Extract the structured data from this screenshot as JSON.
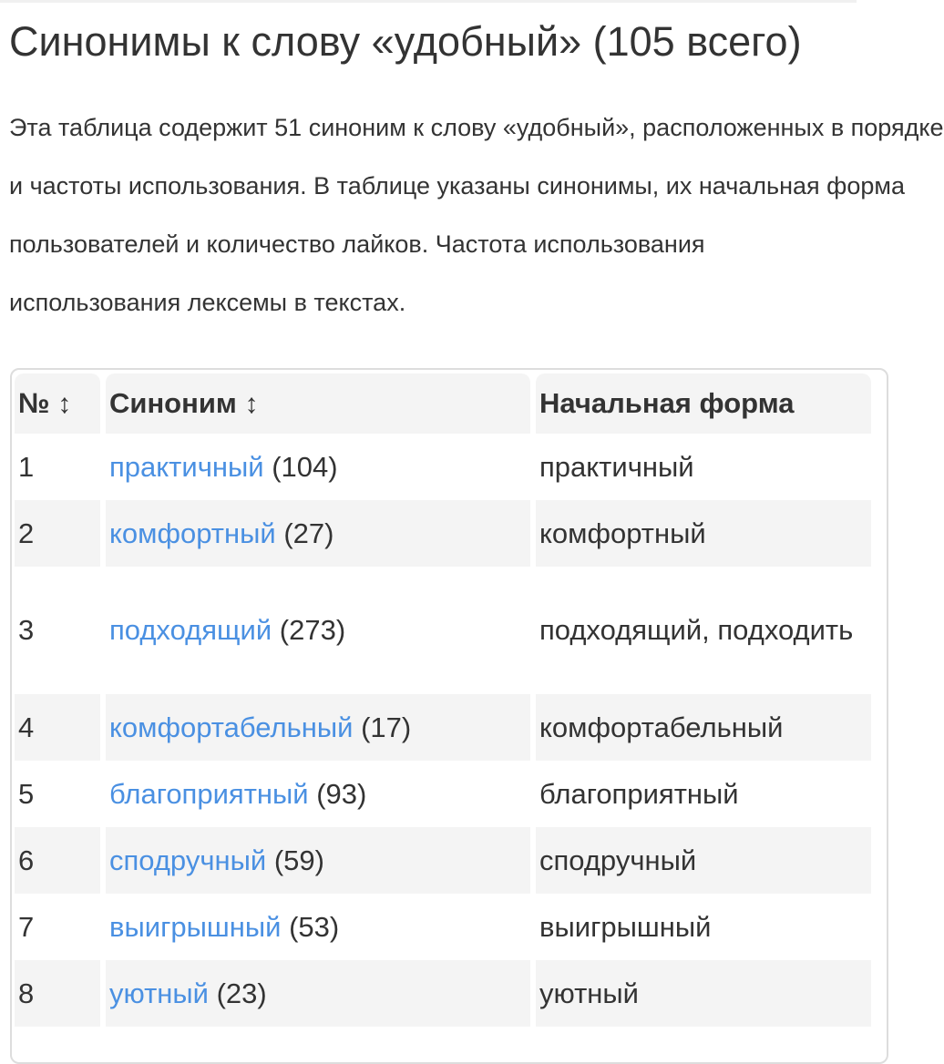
{
  "title": "Синонимы к слову «удобный» (105 всего)",
  "intro_lines": [
    "Эта таблица содержит 51 синоним к слову «удобный», расположенных в порядке",
    "и частоты использования. В таблице указаны синонимы, их начальная форма",
    "пользователей и количество лайков. Частота использования",
    "использования лексемы в текстах."
  ],
  "table": {
    "headers": {
      "num": "№",
      "synonym": "Синоним",
      "base": "Начальная форма",
      "sort_icon": "↕"
    },
    "rows": [
      {
        "num": "1",
        "word": "практичный",
        "count": "(104)",
        "base": "практичный"
      },
      {
        "num": "2",
        "word": "комфортный",
        "count": "(27)",
        "base": "комфортный"
      },
      {
        "num": "3",
        "word": "подходящий",
        "count": "(273)",
        "base": "подходящий, подходить"
      },
      {
        "num": "4",
        "word": "комфортабельный",
        "count": "(17)",
        "base": "комфортабельный"
      },
      {
        "num": "5",
        "word": "благоприятный",
        "count": "(93)",
        "base": "благоприятный"
      },
      {
        "num": "6",
        "word": "сподручный",
        "count": "(59)",
        "base": "сподручный"
      },
      {
        "num": "7",
        "word": "выигрышный",
        "count": "(53)",
        "base": "выигрышный"
      },
      {
        "num": "8",
        "word": "уютный",
        "count": "(23)",
        "base": "уютный"
      }
    ]
  },
  "colors": {
    "link": "#4a90e2",
    "text": "#333333",
    "stripe": "#f4f4f4"
  }
}
